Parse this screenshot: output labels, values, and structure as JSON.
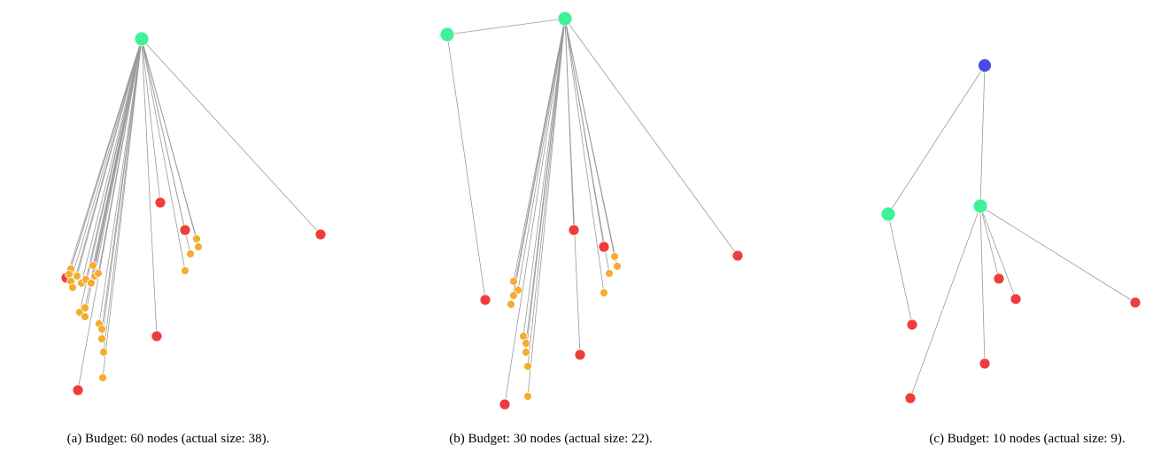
{
  "panels": [
    {
      "caption": "(a) Budget: 60 nodes (actual size: 38)."
    },
    {
      "caption": "(b) Budget: 30 nodes (actual size: 22)."
    },
    {
      "caption": "(c) Budget: 10 nodes (actual size: 9)."
    }
  ]
}
